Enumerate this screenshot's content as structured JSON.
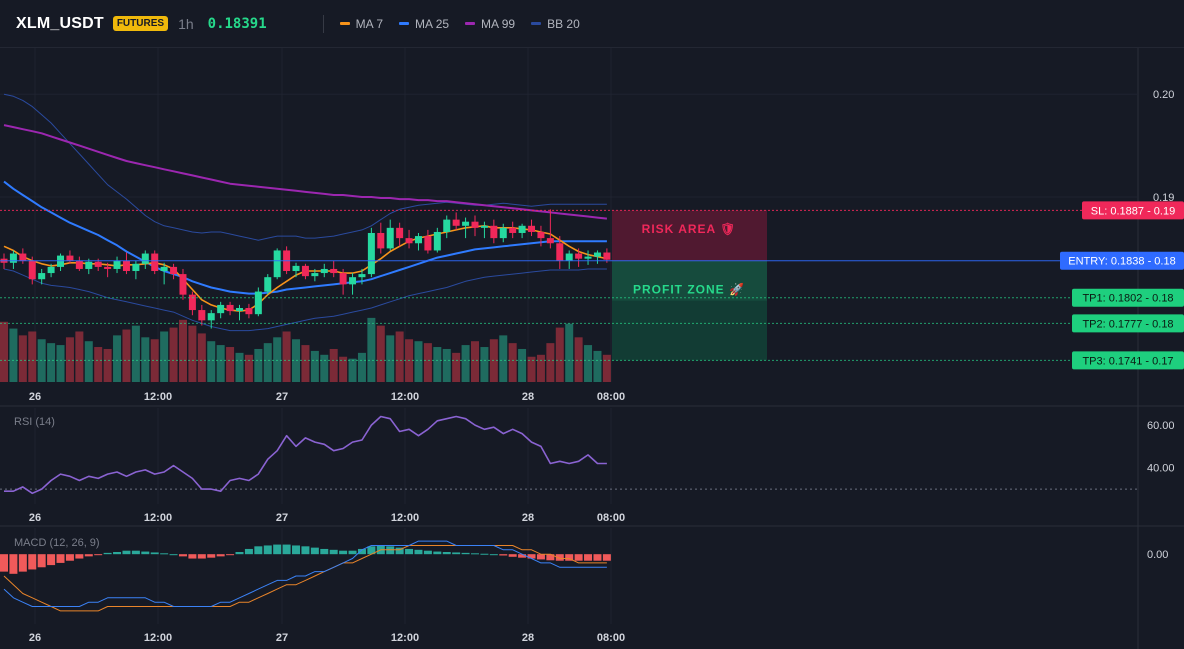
{
  "header": {
    "symbol": "XLM_USDT",
    "badge": "FUTURES",
    "timeframe": "1h",
    "price": "0.18391",
    "indicators": [
      {
        "label": "MA 7",
        "color": "#f7931a"
      },
      {
        "label": "MA 25",
        "color": "#2f7bff"
      },
      {
        "label": "MA 99",
        "color": "#9c27b0"
      },
      {
        "label": "BB 20",
        "color": "#2a4a9e"
      }
    ]
  },
  "colors": {
    "up": "#26d9a0",
    "down": "#f0285a",
    "vol_up": "#1f6b5f",
    "vol_down": "#7b2a37",
    "risk": "#f0285a",
    "profit": "#26d98b",
    "entry": "#2f6bff"
  },
  "price_axis": {
    "labels": [
      "0.20",
      "0.19"
    ]
  },
  "time_axis": {
    "labels": [
      "26",
      "12:00",
      "27",
      "12:00",
      "28",
      "08:00"
    ]
  },
  "trade": {
    "risk_label": "RISK AREA 🛡",
    "profit_label": "PROFIT ZONE 🚀",
    "levels": [
      {
        "tag": "SL: 0.1887 - 0.19",
        "price": 0.1887,
        "kind": "sl"
      },
      {
        "tag": "ENTRY: 0.1838 - 0.18",
        "price": 0.1838,
        "kind": "entry"
      },
      {
        "tag": "TP1: 0.1802 - 0.18",
        "price": 0.1802,
        "kind": "tp"
      },
      {
        "tag": "TP2: 0.1777 - 0.18",
        "price": 0.1777,
        "kind": "tp"
      },
      {
        "tag": "TP3: 0.1741 - 0.17",
        "price": 0.1741,
        "kind": "tp"
      }
    ]
  },
  "rsi": {
    "title": "RSI (14)",
    "axis_labels": [
      "60.00",
      "40.00"
    ]
  },
  "macd": {
    "title": "MACD (12, 26, 9)",
    "axis_labels": [
      "0.00"
    ]
  },
  "chart_data": {
    "type": "candlestick",
    "price_ylim": [
      0.172,
      0.2045
    ],
    "candles": [
      [
        0.184,
        0.1845,
        0.183,
        0.1836
      ],
      [
        0.1836,
        0.1848,
        0.183,
        0.1845
      ],
      [
        0.1845,
        0.185,
        0.1835,
        0.1838
      ],
      [
        0.1838,
        0.1842,
        0.1815,
        0.182
      ],
      [
        0.182,
        0.183,
        0.1815,
        0.1826
      ],
      [
        0.1826,
        0.1835,
        0.1822,
        0.1832
      ],
      [
        0.1832,
        0.1845,
        0.1828,
        0.1843
      ],
      [
        0.1843,
        0.1848,
        0.1835,
        0.1838
      ],
      [
        0.1838,
        0.1842,
        0.1828,
        0.183
      ],
      [
        0.183,
        0.184,
        0.1825,
        0.1837
      ],
      [
        0.1837,
        0.184,
        0.1828,
        0.1832
      ],
      [
        0.1832,
        0.1836,
        0.1822,
        0.183
      ],
      [
        0.183,
        0.1842,
        0.1826,
        0.1838
      ],
      [
        0.1838,
        0.1846,
        0.1825,
        0.1828
      ],
      [
        0.1828,
        0.1838,
        0.182,
        0.1835
      ],
      [
        0.1835,
        0.1848,
        0.183,
        0.1845
      ],
      [
        0.1845,
        0.1848,
        0.1825,
        0.1828
      ],
      [
        0.1828,
        0.1836,
        0.1815,
        0.1832
      ],
      [
        0.1832,
        0.1835,
        0.182,
        0.1825
      ],
      [
        0.1825,
        0.183,
        0.18,
        0.1805
      ],
      [
        0.1805,
        0.1808,
        0.1785,
        0.179
      ],
      [
        0.179,
        0.1795,
        0.1775,
        0.178
      ],
      [
        0.178,
        0.179,
        0.1772,
        0.1787
      ],
      [
        0.1787,
        0.1798,
        0.1782,
        0.1795
      ],
      [
        0.1795,
        0.1798,
        0.1785,
        0.1789
      ],
      [
        0.1789,
        0.1795,
        0.178,
        0.1792
      ],
      [
        0.1792,
        0.1796,
        0.1782,
        0.1786
      ],
      [
        0.1786,
        0.1812,
        0.1784,
        0.1808
      ],
      [
        0.1808,
        0.1825,
        0.1805,
        0.1822
      ],
      [
        0.1822,
        0.185,
        0.182,
        0.1848
      ],
      [
        0.1848,
        0.1852,
        0.1825,
        0.1828
      ],
      [
        0.1828,
        0.1836,
        0.1822,
        0.1833
      ],
      [
        0.1833,
        0.1835,
        0.182,
        0.1823
      ],
      [
        0.1823,
        0.183,
        0.1818,
        0.1826
      ],
      [
        0.1826,
        0.1835,
        0.1822,
        0.183
      ],
      [
        0.183,
        0.1838,
        0.1822,
        0.1826
      ],
      [
        0.1826,
        0.183,
        0.1805,
        0.1815
      ],
      [
        0.1815,
        0.1826,
        0.1805,
        0.1822
      ],
      [
        0.1822,
        0.183,
        0.1815,
        0.1825
      ],
      [
        0.1825,
        0.187,
        0.1822,
        0.1865
      ],
      [
        0.1865,
        0.1875,
        0.1845,
        0.185
      ],
      [
        0.185,
        0.1878,
        0.1848,
        0.187
      ],
      [
        0.187,
        0.1875,
        0.1852,
        0.186
      ],
      [
        0.186,
        0.1868,
        0.185,
        0.1855
      ],
      [
        0.1855,
        0.1865,
        0.1848,
        0.1862
      ],
      [
        0.1862,
        0.1868,
        0.1845,
        0.1848
      ],
      [
        0.1848,
        0.187,
        0.1846,
        0.1866
      ],
      [
        0.1866,
        0.1882,
        0.186,
        0.1878
      ],
      [
        0.1878,
        0.1885,
        0.1868,
        0.1872
      ],
      [
        0.1872,
        0.188,
        0.186,
        0.1876
      ],
      [
        0.1876,
        0.1882,
        0.1862,
        0.187
      ],
      [
        0.187,
        0.1876,
        0.186,
        0.1872
      ],
      [
        0.1872,
        0.1878,
        0.1855,
        0.186
      ],
      [
        0.186,
        0.1874,
        0.1856,
        0.187
      ],
      [
        0.187,
        0.1876,
        0.186,
        0.1865
      ],
      [
        0.1865,
        0.1874,
        0.186,
        0.1872
      ],
      [
        0.1872,
        0.1878,
        0.1862,
        0.1866
      ],
      [
        0.1866,
        0.1872,
        0.1852,
        0.186
      ],
      [
        0.186,
        0.1888,
        0.185,
        0.1855
      ],
      [
        0.1855,
        0.1862,
        0.183,
        0.1838
      ],
      [
        0.1838,
        0.1848,
        0.183,
        0.1845
      ],
      [
        0.1845,
        0.185,
        0.1832,
        0.184
      ],
      [
        0.184,
        0.1848,
        0.1834,
        0.1842
      ],
      [
        0.1842,
        0.1848,
        0.1835,
        0.1846
      ],
      [
        0.1846,
        0.185,
        0.1836,
        0.1839
      ]
    ],
    "volume": [
      62,
      55,
      48,
      52,
      44,
      40,
      38,
      46,
      52,
      42,
      36,
      34,
      48,
      54,
      58,
      46,
      44,
      52,
      56,
      64,
      58,
      50,
      42,
      38,
      36,
      30,
      28,
      34,
      40,
      46,
      52,
      44,
      38,
      32,
      28,
      34,
      26,
      24,
      30,
      66,
      58,
      48,
      52,
      44,
      42,
      40,
      36,
      34,
      30,
      38,
      42,
      36,
      44,
      48,
      40,
      34,
      26,
      28,
      40,
      56,
      60,
      46,
      38,
      32,
      28
    ],
    "vol_ylim": [
      0,
      70
    ],
    "ma7": [
      0.1852,
      0.1848,
      0.1842,
      0.1838,
      0.1835,
      0.1833,
      0.1834,
      0.1836,
      0.1836,
      0.1835,
      0.1835,
      0.1834,
      0.1833,
      0.1834,
      0.1834,
      0.1835,
      0.1836,
      0.1834,
      0.183,
      0.182,
      0.181,
      0.18,
      0.1795,
      0.1792,
      0.179,
      0.1789,
      0.179,
      0.1796,
      0.1805,
      0.1812,
      0.1818,
      0.1824,
      0.1828,
      0.1828,
      0.1828,
      0.1828,
      0.1826,
      0.1826,
      0.1828,
      0.1834,
      0.184,
      0.1847,
      0.1852,
      0.1857,
      0.186,
      0.1862,
      0.1864,
      0.1866,
      0.1868,
      0.187,
      0.1871,
      0.1872,
      0.187,
      0.187,
      0.187,
      0.1869,
      0.1868,
      0.1866,
      0.1864,
      0.1858,
      0.1852,
      0.1847,
      0.1844,
      0.1842,
      0.184
    ],
    "ma25": [
      0.1915,
      0.1908,
      0.1902,
      0.1896,
      0.189,
      0.1885,
      0.188,
      0.1875,
      0.1871,
      0.1867,
      0.1863,
      0.1858,
      0.1853,
      0.1847,
      0.1842,
      0.1837,
      0.1832,
      0.1828,
      0.1825,
      0.1822,
      0.1818,
      0.1815,
      0.1812,
      0.181,
      0.1808,
      0.1807,
      0.1806,
      0.1806,
      0.1807,
      0.1808,
      0.181,
      0.1811,
      0.1812,
      0.1813,
      0.1814,
      0.1815,
      0.1816,
      0.1817,
      0.1818,
      0.182,
      0.1823,
      0.1826,
      0.1829,
      0.1832,
      0.1835,
      0.1838,
      0.1841,
      0.1843,
      0.1845,
      0.1847,
      0.1849,
      0.185,
      0.1851,
      0.1852,
      0.1853,
      0.1854,
      0.1855,
      0.1856,
      0.1857,
      0.1857,
      0.1857,
      0.1857,
      0.1857,
      0.1857,
      0.1857
    ],
    "ma99": [
      0.197,
      0.1968,
      0.1966,
      0.1964,
      0.1962,
      0.1959,
      0.1956,
      0.1953,
      0.195,
      0.1947,
      0.1944,
      0.1941,
      0.1938,
      0.1935,
      0.1933,
      0.1931,
      0.1929,
      0.1927,
      0.1925,
      0.1923,
      0.1921,
      0.1919,
      0.1917,
      0.1915,
      0.1913,
      0.1912,
      0.1911,
      0.191,
      0.1909,
      0.1908,
      0.1907,
      0.1906,
      0.1905,
      0.1904,
      0.1903,
      0.1902,
      0.1902,
      0.1901,
      0.19,
      0.19,
      0.1899,
      0.1899,
      0.1898,
      0.1898,
      0.1897,
      0.1897,
      0.1896,
      0.1896,
      0.1895,
      0.1894,
      0.1893,
      0.1892,
      0.1891,
      0.189,
      0.1889,
      0.1888,
      0.1887,
      0.1886,
      0.1885,
      0.1884,
      0.1883,
      0.1882,
      0.1881,
      0.188,
      0.1879
    ],
    "bb_upper": [
      0.2,
      0.1998,
      0.1994,
      0.1988,
      0.198,
      0.1972,
      0.1962,
      0.1952,
      0.1942,
      0.1932,
      0.1922,
      0.1912,
      0.1905,
      0.1898,
      0.189,
      0.1882,
      0.1876,
      0.1872,
      0.187,
      0.1868,
      0.1866,
      0.1865,
      0.1866,
      0.1866,
      0.1864,
      0.1862,
      0.186,
      0.1858,
      0.186,
      0.1862,
      0.1862,
      0.1862,
      0.186,
      0.186,
      0.1861,
      0.1862,
      0.1864,
      0.1866,
      0.1868,
      0.1872,
      0.1878,
      0.1884,
      0.1888,
      0.189,
      0.1892,
      0.1893,
      0.1894,
      0.1895,
      0.1894,
      0.1893,
      0.1892,
      0.1892,
      0.1893,
      0.1894,
      0.1893,
      0.1892,
      0.1891,
      0.1892,
      0.1893,
      0.1893,
      0.1893,
      0.1893,
      0.1893,
      0.1893,
      0.1893
    ],
    "bb_lower": [
      0.183,
      0.1828,
      0.1824,
      0.182,
      0.1816,
      0.1814,
      0.1813,
      0.1812,
      0.181,
      0.1808,
      0.1805,
      0.1802,
      0.18,
      0.1798,
      0.1796,
      0.1794,
      0.1792,
      0.179,
      0.1788,
      0.1784,
      0.178,
      0.1777,
      0.1774,
      0.1772,
      0.177,
      0.177,
      0.177,
      0.1771,
      0.1772,
      0.1774,
      0.1776,
      0.1778,
      0.178,
      0.1782,
      0.1783,
      0.1784,
      0.1786,
      0.1788,
      0.179,
      0.1792,
      0.1795,
      0.1798,
      0.1801,
      0.1804,
      0.1806,
      0.1808,
      0.181,
      0.1812,
      0.1815,
      0.1818,
      0.182,
      0.1822,
      0.1823,
      0.1824,
      0.1825,
      0.1826,
      0.1827,
      0.1828,
      0.1829,
      0.1829,
      0.1829,
      0.1829,
      0.183,
      0.183,
      0.183
    ],
    "rsi_ylim": [
      23,
      68
    ],
    "rsi_ref": 30,
    "rsi": [
      29,
      29,
      31,
      28,
      30,
      34,
      37,
      36,
      34,
      36,
      35,
      37,
      38,
      36,
      38,
      39,
      37,
      38,
      41,
      38,
      35,
      30,
      30,
      29,
      34,
      35,
      34,
      37,
      44,
      48,
      55,
      50,
      54,
      52,
      51,
      48,
      49,
      52,
      53,
      60,
      64,
      63,
      57,
      58,
      55,
      58,
      62,
      63,
      64,
      63,
      60,
      58,
      59,
      56,
      58,
      56,
      52,
      50,
      42,
      43,
      42,
      43,
      46,
      42,
      42
    ],
    "macd_ylim": [
      -0.0016,
      0.0006
    ],
    "macd_hist": [
      -0.0004,
      -0.00045,
      -0.0004,
      -0.00035,
      -0.0003,
      -0.00025,
      -0.0002,
      -0.00015,
      -0.0001,
      -5e-05,
      -2e-05,
      3e-05,
      5e-05,
      8e-05,
      8e-05,
      6e-05,
      4e-05,
      2e-05,
      0.0,
      -5e-05,
      -0.0001,
      -0.0001,
      -8e-05,
      -5e-05,
      -2e-05,
      5e-05,
      0.00012,
      0.00018,
      0.0002,
      0.00022,
      0.00022,
      0.0002,
      0.00018,
      0.00015,
      0.00012,
      0.0001,
      8e-05,
      8e-05,
      0.00012,
      0.00018,
      0.0002,
      0.00018,
      0.00015,
      0.00012,
      0.0001,
      8e-05,
      6e-05,
      5e-05,
      4e-05,
      3e-05,
      2e-05,
      1e-05,
      0.0,
      -3e-05,
      -6e-05,
      -8e-05,
      -0.0001,
      -0.00012,
      -0.00014,
      -0.00015,
      -0.00015,
      -0.00015,
      -0.00015,
      -0.00015,
      -0.00015
    ],
    "macd_line": [
      -0.0008,
      -0.001,
      -0.0011,
      -0.0012,
      -0.0012,
      -0.0012,
      -0.0012,
      -0.0012,
      -0.0012,
      -0.0011,
      -0.0011,
      -0.001,
      -0.001,
      -0.001,
      -0.001,
      -0.001,
      -0.0011,
      -0.0011,
      -0.0012,
      -0.0012,
      -0.0012,
      -0.0012,
      -0.0012,
      -0.0011,
      -0.0011,
      -0.001,
      -0.0009,
      -0.0008,
      -0.0007,
      -0.0006,
      -0.0006,
      -0.0005,
      -0.0005,
      -0.0004,
      -0.0004,
      -0.0003,
      -0.0002,
      -0.0001,
      0.0001,
      0.0002,
      0.0002,
      0.0002,
      0.0002,
      0.0002,
      0.0003,
      0.0003,
      0.0003,
      0.0003,
      0.0002,
      0.0002,
      0.0002,
      0.0002,
      0.0002,
      0.0001,
      0.0001,
      0.0,
      -0.0001,
      -0.0002,
      -0.0002,
      -0.0003,
      -0.0003,
      -0.0003,
      -0.0003,
      -0.0003,
      -0.0003
    ],
    "macd_signal": [
      -0.0005,
      -0.0007,
      -0.0009,
      -0.001,
      -0.0011,
      -0.0012,
      -0.0013,
      -0.0013,
      -0.0013,
      -0.0013,
      -0.0013,
      -0.0012,
      -0.0012,
      -0.0012,
      -0.0012,
      -0.0012,
      -0.0012,
      -0.0012,
      -0.0012,
      -0.0012,
      -0.0012,
      -0.0012,
      -0.0012,
      -0.0012,
      -0.0012,
      -0.0011,
      -0.0011,
      -0.001,
      -0.0009,
      -0.0008,
      -0.0007,
      -0.0007,
      -0.0006,
      -0.0005,
      -0.0004,
      -0.0003,
      -0.0002,
      -0.0002,
      -0.0001,
      0.0,
      0.0001,
      0.0001,
      0.0001,
      0.0002,
      0.0002,
      0.0002,
      0.0002,
      0.0002,
      0.0002,
      0.0002,
      0.0002,
      0.0002,
      0.0002,
      0.0002,
      0.0002,
      0.0001,
      0.0001,
      0.0,
      0.0,
      -0.0001,
      -0.0001,
      -0.0002,
      -0.0002,
      -0.0002,
      -0.0002
    ]
  }
}
